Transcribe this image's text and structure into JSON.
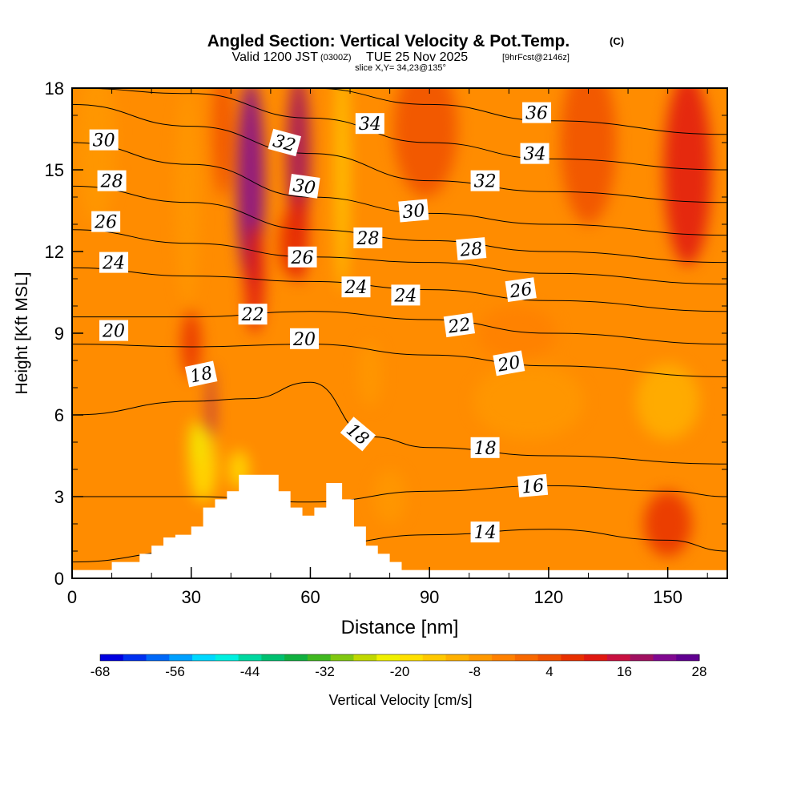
{
  "header": {
    "title_main": "Angled Section: Vertical Velocity & Pot.Temp.",
    "title_unit": "(C)",
    "valid_pre": "Valid 1200 JST",
    "valid_z": "(0300Z)",
    "valid_date": "TUE 25 Nov 2025",
    "valid_fcst": "[9hrFcst@2146z]",
    "slice": "slice X,Y= 34,23@135°"
  },
  "chart_data": {
    "type": "heatmap",
    "xlabel": "Distance [nm]",
    "ylabel": "Height [Kft MSL]",
    "xlim": [
      0,
      165
    ],
    "ylim": [
      0,
      18
    ],
    "xticks": [
      0,
      30,
      60,
      90,
      120,
      150
    ],
    "yticks": [
      0,
      3,
      6,
      9,
      12,
      15,
      18
    ],
    "colorbar": {
      "label": "Vertical Velocity [cm/s]",
      "ticks": [
        -68,
        -56,
        -44,
        -32,
        -20,
        -8,
        4,
        16,
        28
      ],
      "colors": [
        "#0000e0",
        "#0030f0",
        "#0068f8",
        "#00a0ff",
        "#00d8ff",
        "#00f0e0",
        "#00d8a0",
        "#00c070",
        "#10b040",
        "#40b820",
        "#80c810",
        "#c0d800",
        "#f0f000",
        "#ffe000",
        "#ffc800",
        "#ffb000",
        "#ff9800",
        "#ff8000",
        "#f86800",
        "#f05000",
        "#e83000",
        "#e01810",
        "#c81040",
        "#a01060",
        "#800890",
        "#600090"
      ]
    },
    "terrain_profile": {
      "x": [
        0,
        10,
        10,
        17,
        17,
        20,
        20,
        23,
        23,
        26,
        26,
        30,
        30,
        33,
        33,
        36,
        36,
        39,
        39,
        42,
        42,
        52,
        52,
        55,
        55,
        58,
        58,
        61,
        61,
        64,
        64,
        68,
        68,
        71,
        71,
        74,
        74,
        77,
        77,
        80,
        80,
        83,
        83,
        90,
        90
      ],
      "y": [
        0.3,
        0.3,
        0.6,
        0.6,
        0.9,
        0.9,
        1.2,
        1.2,
        1.5,
        1.5,
        1.6,
        1.6,
        1.9,
        1.9,
        2.6,
        2.6,
        2.9,
        2.9,
        3.2,
        3.2,
        3.8,
        3.8,
        3.2,
        3.2,
        2.6,
        2.6,
        2.3,
        2.3,
        2.6,
        2.6,
        3.5,
        3.5,
        2.9,
        2.9,
        1.9,
        1.9,
        1.2,
        1.2,
        0.9,
        0.9,
        0.6,
        0.6,
        0.3,
        0.3,
        0
      ]
    },
    "theta_contours": [
      {
        "value": 14,
        "x": [
          0,
          30,
          60,
          90,
          120,
          150,
          165
        ],
        "y": [
          0.6,
          1.0,
          1.2,
          1.6,
          1.8,
          1.4,
          1.0
        ]
      },
      {
        "value": 16,
        "x": [
          0,
          30,
          60,
          90,
          120,
          150,
          165
        ],
        "y": [
          3.0,
          3.0,
          2.8,
          3.2,
          3.4,
          3.2,
          3.0
        ]
      },
      {
        "value": 18,
        "x": [
          0,
          30,
          45,
          60,
          75,
          90,
          120,
          165
        ],
        "y": [
          6.0,
          6.5,
          6.6,
          7.2,
          5.2,
          4.8,
          4.5,
          4.2
        ]
      },
      {
        "value": 20,
        "x": [
          0,
          30,
          60,
          90,
          120,
          165
        ],
        "y": [
          8.6,
          8.5,
          8.6,
          8.2,
          7.8,
          7.4
        ]
      },
      {
        "value": 22,
        "x": [
          0,
          30,
          60,
          90,
          120,
          165
        ],
        "y": [
          9.6,
          9.6,
          9.8,
          9.5,
          9.0,
          8.6
        ]
      },
      {
        "value": 24,
        "x": [
          0,
          30,
          60,
          90,
          120,
          165
        ],
        "y": [
          11.4,
          11.1,
          10.9,
          10.6,
          10.2,
          9.8
        ]
      },
      {
        "value": 26,
        "x": [
          0,
          30,
          60,
          90,
          120,
          165
        ],
        "y": [
          12.8,
          12.3,
          11.8,
          11.6,
          11.2,
          10.8
        ]
      },
      {
        "value": 28,
        "x": [
          0,
          30,
          60,
          90,
          120,
          165
        ],
        "y": [
          14.4,
          13.8,
          12.8,
          12.4,
          12.0,
          11.6
        ]
      },
      {
        "value": 30,
        "x": [
          0,
          30,
          60,
          90,
          120,
          165
        ],
        "y": [
          16.0,
          15.2,
          14.0,
          13.4,
          13.0,
          12.6
        ]
      },
      {
        "value": 32,
        "x": [
          0,
          30,
          60,
          90,
          120,
          165
        ],
        "y": [
          17.4,
          16.6,
          15.6,
          14.6,
          14.2,
          13.8
        ]
      },
      {
        "value": 34,
        "x": [
          0,
          30,
          60,
          90,
          120,
          165
        ],
        "y": [
          18.0,
          17.8,
          16.9,
          16.0,
          15.4,
          15.0
        ]
      },
      {
        "value": 36,
        "x": [
          60,
          90,
          120,
          165
        ],
        "y": [
          18.0,
          17.4,
          16.8,
          16.3
        ]
      }
    ],
    "contour_labels": [
      {
        "text": "30",
        "x": 8,
        "y": 16.1,
        "rot": 0
      },
      {
        "text": "28",
        "x": 10,
        "y": 14.6,
        "rot": 0
      },
      {
        "text": "26",
        "x": 8.5,
        "y": 13.1,
        "rot": 0
      },
      {
        "text": "24",
        "x": 10.5,
        "y": 11.6,
        "rot": 0
      },
      {
        "text": "20",
        "x": 10.5,
        "y": 9.1,
        "rot": 0
      },
      {
        "text": "18",
        "x": 32.5,
        "y": 7.5,
        "rot": -12
      },
      {
        "text": "22",
        "x": 45.5,
        "y": 9.7,
        "rot": 0
      },
      {
        "text": "32",
        "x": 53.5,
        "y": 16.0,
        "rot": 15
      },
      {
        "text": "30",
        "x": 58.5,
        "y": 14.4,
        "rot": 8
      },
      {
        "text": "26",
        "x": 58,
        "y": 11.8,
        "rot": 0
      },
      {
        "text": "20",
        "x": 58.5,
        "y": 8.8,
        "rot": 0
      },
      {
        "text": "34",
        "x": 75,
        "y": 16.7,
        "rot": 0
      },
      {
        "text": "28",
        "x": 74.5,
        "y": 12.5,
        "rot": 0
      },
      {
        "text": "24",
        "x": 71.5,
        "y": 10.7,
        "rot": 0
      },
      {
        "text": "24",
        "x": 84,
        "y": 10.4,
        "rot": 0
      },
      {
        "text": "18",
        "x": 72,
        "y": 5.3,
        "rot": 40
      },
      {
        "text": "30",
        "x": 86,
        "y": 13.5,
        "rot": -5
      },
      {
        "text": "28",
        "x": 100.5,
        "y": 12.1,
        "rot": -5
      },
      {
        "text": "22",
        "x": 97.5,
        "y": 9.3,
        "rot": -8
      },
      {
        "text": "20",
        "x": 110,
        "y": 7.9,
        "rot": -10
      },
      {
        "text": "32",
        "x": 104,
        "y": 14.6,
        "rot": 0
      },
      {
        "text": "18",
        "x": 104,
        "y": 4.8,
        "rot": 0
      },
      {
        "text": "14",
        "x": 104,
        "y": 1.7,
        "rot": 0
      },
      {
        "text": "36",
        "x": 117,
        "y": 17.1,
        "rot": 0
      },
      {
        "text": "34",
        "x": 116.5,
        "y": 15.6,
        "rot": 0
      },
      {
        "text": "26",
        "x": 113,
        "y": 10.6,
        "rot": -8
      },
      {
        "text": "16",
        "x": 116,
        "y": 3.4,
        "rot": -5
      }
    ],
    "velocity_features": [
      {
        "x": 45,
        "y": 14.5,
        "sx": 3.5,
        "sy": 3.8,
        "v": 22
      },
      {
        "x": 46,
        "y": 11.0,
        "sx": 2.5,
        "sy": 2.0,
        "v": 12
      },
      {
        "x": 57,
        "y": 15.5,
        "sx": 3.0,
        "sy": 3.0,
        "v": 18
      },
      {
        "x": 57,
        "y": 12.5,
        "sx": 2.5,
        "sy": 1.6,
        "v": 10
      },
      {
        "x": 35,
        "y": 6.0,
        "sx": 0.8,
        "sy": 1.8,
        "v": 20
      },
      {
        "x": 33,
        "y": 4.2,
        "sx": 3.5,
        "sy": 1.4,
        "v": -18
      },
      {
        "x": 31,
        "y": 5.0,
        "sx": 1.5,
        "sy": 0.8,
        "v": -22
      },
      {
        "x": 42,
        "y": 4.0,
        "sx": 2.5,
        "sy": 0.7,
        "v": -20
      },
      {
        "x": 68,
        "y": 15.0,
        "sx": 1.8,
        "sy": 4.5,
        "v": -16
      },
      {
        "x": 29,
        "y": 14.0,
        "sx": 3.0,
        "sy": 4.0,
        "v": -7
      },
      {
        "x": 55,
        "y": 12.3,
        "sx": 3.0,
        "sy": 1.2,
        "v": 8
      },
      {
        "x": 89,
        "y": 16.5,
        "sx": 8.0,
        "sy": 2.5,
        "v": 5
      },
      {
        "x": 155,
        "y": 15.0,
        "sx": 6.0,
        "sy": 3.5,
        "v": 12
      },
      {
        "x": 130,
        "y": 16.0,
        "sx": 7.0,
        "sy": 3.0,
        "v": 5
      },
      {
        "x": 115,
        "y": 6.5,
        "sx": 14.0,
        "sy": 1.4,
        "v": -8
      },
      {
        "x": 150,
        "y": 6.5,
        "sx": 8.0,
        "sy": 1.4,
        "v": -9
      },
      {
        "x": 112,
        "y": 9.0,
        "sx": 10.0,
        "sy": 1.0,
        "v": -4
      },
      {
        "x": 6,
        "y": 16.0,
        "sx": 5.0,
        "sy": 3.0,
        "v": -6
      },
      {
        "x": 38,
        "y": 16.5,
        "sx": 2.5,
        "sy": 2.5,
        "v": 4
      },
      {
        "x": 30,
        "y": 8.6,
        "sx": 2.5,
        "sy": 1.2,
        "v": 8
      },
      {
        "x": 150,
        "y": 2.0,
        "sx": 6.0,
        "sy": 1.2,
        "v": 6
      },
      {
        "x": 80,
        "y": 3.0,
        "sx": 4.0,
        "sy": 1.0,
        "v": -8
      },
      {
        "x": 75,
        "y": 7.5,
        "sx": 3.0,
        "sy": 1.2,
        "v": -6
      }
    ]
  }
}
